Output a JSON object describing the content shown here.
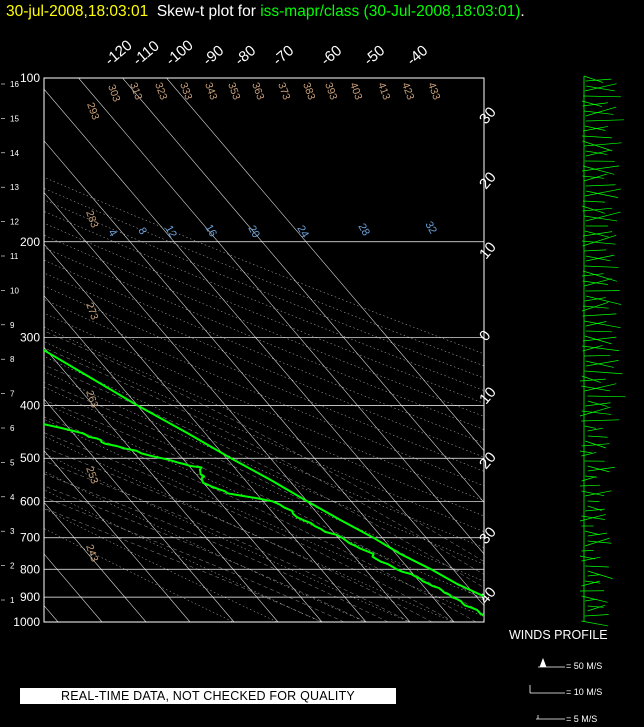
{
  "title": {
    "timestamp": "30-jul-2008,18:03:01",
    "prefix": "Skew-t plot for",
    "source": "iss-mapr/class (30-Jul-2008,18:03:01)",
    "suffix": "."
  },
  "footer": {
    "disclaimer": "REAL-TIME DATA, NOT CHECKED FOR QUALITY",
    "winds_profile_label": "WINDS PROFILE",
    "wind_key": [
      "= 50 M/S",
      "= 10 M/S",
      "= 5 M/S"
    ]
  },
  "colors": {
    "background": "#000000",
    "profile_lines": "#00ff00",
    "grid": "#ffffff",
    "title_timestamp": "#ffff00",
    "title_source": "#00ff00",
    "mixing_ratio_labels": "#6aa0d8",
    "dry_adiabat_labels": "#c8a078"
  },
  "chart_data": {
    "type": "line",
    "pressure_levels": [
      100,
      200,
      300,
      400,
      500,
      600,
      700,
      800,
      900,
      1000
    ],
    "height_ticks": [
      1,
      2,
      3,
      4,
      5,
      6,
      7,
      8,
      9,
      10,
      11,
      12,
      13,
      14,
      15,
      16
    ],
    "temperature_ticks_top": [
      "-120",
      "-110",
      "-100",
      "-90",
      "-80",
      "-70",
      "-60",
      "-50",
      "-40"
    ],
    "temperature_ticks_right": [
      "30",
      "20",
      "10",
      "0",
      "10",
      "20",
      "30",
      "40"
    ],
    "mixing_ratio_labels": [
      "4",
      "8",
      "12",
      "16",
      "20",
      "24",
      "28",
      "32"
    ],
    "dry_adiabat_labels": [
      "293",
      "303",
      "313",
      "323",
      "333",
      "343",
      "353",
      "363",
      "373",
      "383",
      "393",
      "403",
      "413",
      "423",
      "433",
      "283",
      "273",
      "263",
      "253",
      "243"
    ],
    "series": [
      {
        "name": "temperature",
        "points": [
          [
            28,
            1000
          ],
          [
            25,
            950
          ],
          [
            22,
            900
          ],
          [
            18,
            850
          ],
          [
            15,
            800
          ],
          [
            11,
            750
          ],
          [
            8,
            700
          ],
          [
            4,
            650
          ],
          [
            0,
            600
          ],
          [
            -4,
            550
          ],
          [
            -9,
            500
          ],
          [
            -14,
            450
          ],
          [
            -20,
            400
          ],
          [
            -26,
            350
          ],
          [
            -33,
            300
          ],
          [
            -41,
            250
          ],
          [
            -50,
            200
          ],
          [
            -59,
            170
          ],
          [
            -66,
            150
          ],
          [
            -72,
            130
          ],
          [
            -76,
            120
          ],
          [
            -74,
            110
          ],
          [
            -73,
            100
          ]
        ]
      },
      {
        "name": "dewpoint",
        "points": [
          [
            18,
            1000
          ],
          [
            17,
            950
          ],
          [
            15,
            900
          ],
          [
            11,
            850
          ],
          [
            8,
            800
          ],
          [
            4,
            750
          ],
          [
            0,
            700
          ],
          [
            -4,
            650
          ],
          [
            -8,
            600
          ],
          [
            -16,
            580
          ],
          [
            -20,
            550
          ],
          [
            -18,
            520
          ],
          [
            -24,
            500
          ],
          [
            -35,
            470
          ],
          [
            -37,
            450
          ],
          [
            -50,
            420
          ],
          [
            -48,
            400
          ],
          [
            -57,
            380
          ],
          [
            -58,
            350
          ],
          [
            -59,
            330
          ],
          [
            -70,
            310
          ],
          [
            -72,
            300
          ],
          [
            -75,
            290
          ],
          [
            -72,
            270
          ],
          [
            -83,
            250
          ],
          [
            -87,
            220
          ],
          [
            -88,
            200
          ],
          [
            -90,
            180
          ],
          [
            -90,
            170
          ],
          [
            -93,
            160
          ],
          [
            -94,
            150
          ],
          [
            -95,
            140
          ],
          [
            -99,
            130
          ],
          [
            -98,
            120
          ],
          [
            -91,
            110
          ],
          [
            -88,
            100
          ]
        ]
      }
    ]
  }
}
